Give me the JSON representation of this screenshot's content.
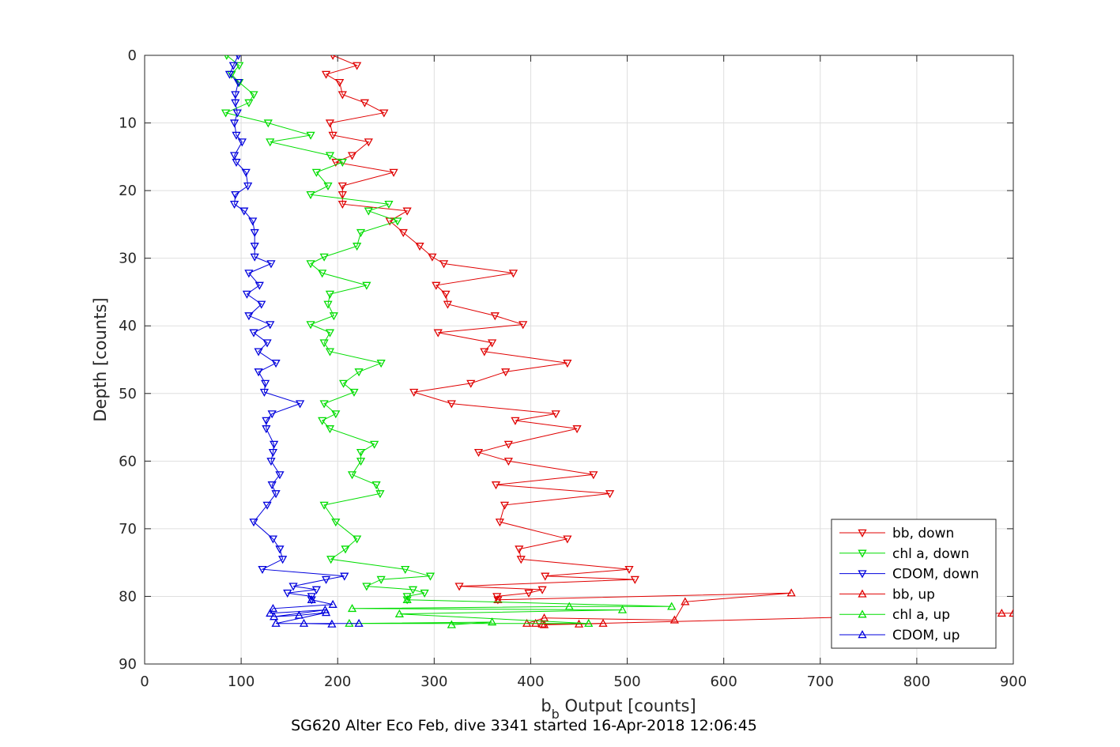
{
  "chart_data": {
    "type": "line",
    "title": "",
    "xlabel_main": "b",
    "xlabel_sub": "b",
    "xlabel_rest": " Output [counts]",
    "ylabel": "Depth [counts]",
    "caption": "SG620 Alter Eco Feb, dive 3341 started 16-Apr-2018 12:06:45",
    "xlim": [
      0,
      900
    ],
    "ylim": [
      0,
      90
    ],
    "y_reversed": true,
    "xticks": [
      0,
      100,
      200,
      300,
      400,
      500,
      600,
      700,
      800,
      900
    ],
    "yticks": [
      0,
      10,
      20,
      30,
      40,
      50,
      60,
      70,
      80,
      90
    ],
    "grid": true,
    "legend_position": "bottom-right",
    "series": [
      {
        "name": "bb, down",
        "color": "#e00000",
        "marker": "triangle-down",
        "points": [
          [
            195,
            0
          ],
          [
            220,
            1.5
          ],
          [
            188,
            2.8
          ],
          [
            202,
            4
          ],
          [
            205,
            5.8
          ],
          [
            228,
            7
          ],
          [
            248,
            8.5
          ],
          [
            192,
            10
          ],
          [
            195,
            11.8
          ],
          [
            232,
            12.8
          ],
          [
            215,
            14.8
          ],
          [
            198,
            15.8
          ],
          [
            258,
            17.3
          ],
          [
            205,
            19.3
          ],
          [
            205,
            20.6
          ],
          [
            205,
            22
          ],
          [
            272,
            23
          ],
          [
            254,
            24.5
          ],
          [
            268,
            26.2
          ],
          [
            285,
            28.2
          ],
          [
            298,
            29.8
          ],
          [
            310,
            30.8
          ],
          [
            382,
            32.2
          ],
          [
            302,
            34
          ],
          [
            312,
            35.3
          ],
          [
            314,
            36.8
          ],
          [
            363,
            38.5
          ],
          [
            392,
            39.8
          ],
          [
            304,
            41
          ],
          [
            360,
            42.5
          ],
          [
            352,
            43.8
          ],
          [
            438,
            45.5
          ],
          [
            374,
            46.8
          ],
          [
            338,
            48.5
          ],
          [
            279,
            49.8
          ],
          [
            318,
            51.5
          ],
          [
            426,
            53
          ],
          [
            384,
            54
          ],
          [
            448,
            55.2
          ],
          [
            377,
            57.5
          ],
          [
            346,
            58.7
          ],
          [
            377,
            60
          ],
          [
            465,
            62
          ],
          [
            364,
            63.5
          ],
          [
            482,
            64.8
          ],
          [
            373,
            66.5
          ],
          [
            368,
            69
          ],
          [
            438,
            71.5
          ],
          [
            388,
            73
          ],
          [
            390,
            74.5
          ],
          [
            502,
            76
          ],
          [
            415,
            77
          ],
          [
            508,
            77.5
          ],
          [
            326,
            78.5
          ],
          [
            412,
            79
          ],
          [
            398,
            79.5
          ],
          [
            365,
            80
          ],
          [
            366,
            80.5
          ]
        ]
      },
      {
        "name": "chl a, down",
        "color": "#00dd00",
        "marker": "triangle-down",
        "points": [
          [
            85,
            0
          ],
          [
            98,
            1.5
          ],
          [
            90,
            2.8
          ],
          [
            98,
            4
          ],
          [
            113,
            5.8
          ],
          [
            108,
            7
          ],
          [
            84,
            8.5
          ],
          [
            128,
            10
          ],
          [
            172,
            11.8
          ],
          [
            130,
            12.8
          ],
          [
            192,
            14.8
          ],
          [
            205,
            15.8
          ],
          [
            178,
            17.3
          ],
          [
            190,
            19.3
          ],
          [
            172,
            20.6
          ],
          [
            253,
            22
          ],
          [
            232,
            23
          ],
          [
            262,
            24.5
          ],
          [
            224,
            26.2
          ],
          [
            220,
            28.2
          ],
          [
            186,
            29.8
          ],
          [
            172,
            30.8
          ],
          [
            184,
            32.2
          ],
          [
            230,
            34
          ],
          [
            192,
            35.3
          ],
          [
            190,
            36.8
          ],
          [
            196,
            38.5
          ],
          [
            172,
            39.8
          ],
          [
            192,
            41
          ],
          [
            186,
            42.5
          ],
          [
            192,
            43.8
          ],
          [
            245,
            45.5
          ],
          [
            222,
            46.8
          ],
          [
            206,
            48.5
          ],
          [
            217,
            49.8
          ],
          [
            186,
            51.5
          ],
          [
            198,
            53
          ],
          [
            184,
            54
          ],
          [
            192,
            55.2
          ],
          [
            238,
            57.5
          ],
          [
            224,
            58.7
          ],
          [
            224,
            60
          ],
          [
            215,
            62
          ],
          [
            240,
            63.5
          ],
          [
            244,
            64.8
          ],
          [
            186,
            66.5
          ],
          [
            198,
            69
          ],
          [
            220,
            71.5
          ],
          [
            208,
            73
          ],
          [
            193,
            74.5
          ],
          [
            270,
            76
          ],
          [
            296,
            77
          ],
          [
            245,
            77.5
          ],
          [
            230,
            78.5
          ],
          [
            278,
            79
          ],
          [
            290,
            79.5
          ],
          [
            272,
            80
          ],
          [
            272,
            80.5
          ]
        ]
      },
      {
        "name": "CDOM, down",
        "color": "#0000dd",
        "marker": "triangle-down",
        "points": [
          [
            97,
            0
          ],
          [
            92,
            1.5
          ],
          [
            88,
            2.8
          ],
          [
            97,
            4
          ],
          [
            94,
            5.8
          ],
          [
            94,
            7
          ],
          [
            96,
            8.5
          ],
          [
            93,
            10
          ],
          [
            95,
            11.8
          ],
          [
            101,
            12.8
          ],
          [
            93,
            14.8
          ],
          [
            95,
            15.8
          ],
          [
            105,
            17.3
          ],
          [
            107,
            19.3
          ],
          [
            94,
            20.6
          ],
          [
            93,
            22
          ],
          [
            103,
            23
          ],
          [
            112,
            24.5
          ],
          [
            114,
            26.2
          ],
          [
            114,
            28.2
          ],
          [
            114,
            29.8
          ],
          [
            131,
            30.8
          ],
          [
            108,
            32.2
          ],
          [
            119,
            34
          ],
          [
            106,
            35.3
          ],
          [
            121,
            36.8
          ],
          [
            108,
            38.5
          ],
          [
            130,
            39.8
          ],
          [
            113,
            41
          ],
          [
            127,
            42.5
          ],
          [
            118,
            43.8
          ],
          [
            136,
            45.5
          ],
          [
            118,
            46.8
          ],
          [
            125,
            48.5
          ],
          [
            124,
            49.8
          ],
          [
            161,
            51.5
          ],
          [
            132,
            53
          ],
          [
            126,
            54
          ],
          [
            126,
            55.2
          ],
          [
            134,
            57.5
          ],
          [
            133,
            58.7
          ],
          [
            131,
            60
          ],
          [
            140,
            62
          ],
          [
            132,
            63.5
          ],
          [
            136,
            64.8
          ],
          [
            127,
            66.5
          ],
          [
            113,
            69
          ],
          [
            133,
            71.5
          ],
          [
            140,
            73
          ],
          [
            143,
            74.5
          ],
          [
            122,
            76
          ],
          [
            207,
            77
          ],
          [
            188,
            77.5
          ],
          [
            154,
            78.5
          ],
          [
            178,
            79
          ],
          [
            148,
            79.5
          ],
          [
            173,
            80
          ],
          [
            173,
            80.5
          ]
        ]
      },
      {
        "name": "bb, up",
        "color": "#e00000",
        "marker": "triangle-up",
        "points": [
          [
            366,
            80.5
          ],
          [
            670,
            79.5
          ],
          [
            560,
            80.8
          ],
          [
            549,
            83.5
          ],
          [
            414,
            83.2
          ],
          [
            396,
            84
          ],
          [
            405,
            84
          ],
          [
            412,
            84.1
          ],
          [
            475,
            84
          ],
          [
            450,
            84.1
          ],
          [
            414,
            84.2
          ],
          [
            888,
            82.5
          ],
          [
            900,
            82.5
          ]
        ]
      },
      {
        "name": "chl a, up",
        "color": "#00dd00",
        "marker": "triangle-up",
        "points": [
          [
            272,
            80.5
          ],
          [
            546,
            81.5
          ],
          [
            440,
            81.5
          ],
          [
            215,
            81.8
          ],
          [
            495,
            82
          ],
          [
            264,
            82.6
          ],
          [
            460,
            84
          ],
          [
            212,
            84
          ],
          [
            360,
            83.8
          ],
          [
            318,
            84.2
          ]
        ]
      },
      {
        "name": "CDOM, up",
        "color": "#0000dd",
        "marker": "triangle-up",
        "points": [
          [
            173,
            80.5
          ],
          [
            195,
            81.2
          ],
          [
            133,
            81.8
          ],
          [
            130,
            82.5
          ],
          [
            187,
            82
          ],
          [
            134,
            83
          ],
          [
            160,
            82.8
          ],
          [
            188,
            82.4
          ],
          [
            136,
            84
          ],
          [
            222,
            84
          ],
          [
            165,
            84
          ],
          [
            194,
            84.1
          ]
        ]
      }
    ]
  }
}
